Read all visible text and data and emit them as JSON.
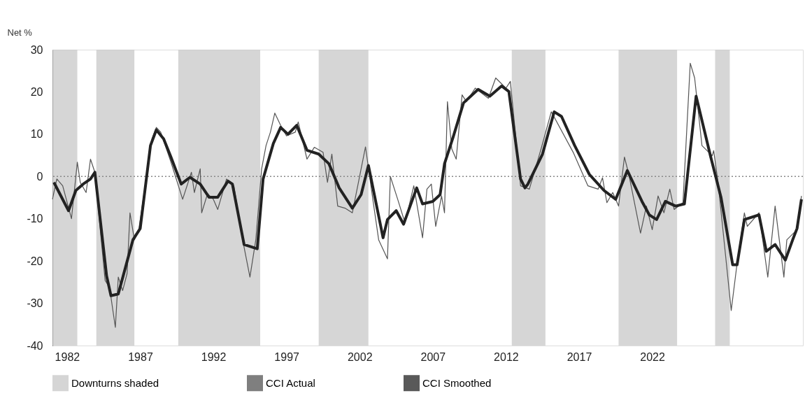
{
  "chart_data": {
    "type": "line",
    "ylabel": "Net %",
    "xlim": [
      1981.0,
      2032.3
    ],
    "xticks": [
      1982,
      1987,
      1992,
      1997,
      2002,
      2007,
      2012,
      2017,
      2022
    ],
    "ylim": [
      -40,
      30
    ],
    "yticks": [
      -40,
      -30,
      -20,
      -10,
      0,
      10,
      20,
      30
    ],
    "grid": false,
    "legend": "bottom",
    "marker": "none",
    "line_style": "solid",
    "bands": [
      {
        "axis": "x",
        "from": 1981.0,
        "to": 1982.7,
        "label": "Downturns shaded",
        "color": "#c8c8c8"
      },
      {
        "axis": "x",
        "from": 1984.0,
        "to": 1986.6,
        "color": "#c8c8c8"
      },
      {
        "axis": "x",
        "from": 1989.6,
        "to": 1995.2,
        "color": "#c8c8c8"
      },
      {
        "axis": "x",
        "from": 1999.2,
        "to": 2002.6,
        "color": "#c8c8c8"
      },
      {
        "axis": "x",
        "from": 2012.4,
        "to": 2014.7,
        "color": "#c8c8c8"
      },
      {
        "axis": "x",
        "from": 2019.7,
        "to": 2023.7,
        "color": "#c8c8c8"
      },
      {
        "axis": "x",
        "from": 2026.3,
        "to": 2027.3,
        "color": "#c8c8c8"
      }
    ],
    "ref_lines": [
      {
        "axis": "y",
        "value": 0,
        "color": "#888888",
        "line_style": "dotted"
      }
    ],
    "series": [
      {
        "name": "CCI Actual",
        "color": "#555555",
        "x": [
          1981.0,
          1981.3,
          1981.7,
          1982.3,
          1982.7,
          1982.9,
          1983.3,
          1983.6,
          1983.9,
          1984.6,
          1984.9,
          1985.3,
          1985.5,
          1985.8,
          1986.1,
          1986.3,
          1986.6,
          1986.9,
          1987.8,
          1988.1,
          1988.4,
          1989.1,
          1989.9,
          1990.5,
          1990.7,
          1991.1,
          1991.2,
          1991.6,
          1992.0,
          1992.3,
          1992.9,
          1993.4,
          1994.0,
          1994.5,
          1994.9,
          1995.3,
          1995.6,
          1995.9,
          1996.2,
          1996.6,
          1997.0,
          1997.6,
          1997.8,
          1998.4,
          1998.9,
          1999.5,
          1999.8,
          2000.1,
          2000.5,
          2001.0,
          2001.5,
          2002.4,
          2002.9,
          2003.3,
          2003.9,
          2004.1,
          2004.6,
          2005.1,
          2005.7,
          2006.3,
          2006.6,
          2006.9,
          2007.2,
          2007.6,
          2007.8,
          2008.0,
          2008.3,
          2008.6,
          2009.0,
          2009.3,
          2009.9,
          2010.8,
          2011.3,
          2012.0,
          2012.3,
          2013.0,
          2013.6,
          2014.4,
          2015.1,
          2016.6,
          2017.6,
          2018.3,
          2018.6,
          2018.9,
          2019.3,
          2019.7,
          2020.1,
          2020.4,
          2021.2,
          2021.6,
          2022.0,
          2022.4,
          2022.8,
          2023.2,
          2023.5,
          2024.1,
          2024.6,
          2024.9,
          2025.4,
          2026.1,
          2026.2,
          2026.5,
          2027.4,
          2027.8,
          2028.3,
          2028.5,
          2029.3,
          2029.9,
          2030.4,
          2031.0,
          2031.2,
          2031.9,
          2032.2
        ],
        "values": [
          -5.4,
          -0.6,
          -2.2,
          -10,
          3.4,
          -1.4,
          -3.8,
          4.1,
          1,
          -24.6,
          -26.2,
          -35.7,
          -23.8,
          -27,
          -23,
          -8.6,
          -15,
          -12.6,
          8.9,
          11.6,
          10.5,
          3.4,
          -5.4,
          1,
          -3.8,
          1.8,
          -8.6,
          -4.1,
          -5.4,
          -7.8,
          -0.6,
          -2.2,
          -15,
          -23.8,
          -15,
          1.8,
          7.3,
          10.5,
          15,
          12.1,
          9.6,
          10.5,
          12.9,
          4.1,
          6.9,
          5.7,
          -1.4,
          5.3,
          -7,
          -7.5,
          -8.6,
          7,
          -5.4,
          -15,
          -19.5,
          0,
          -5.4,
          -11,
          -2.2,
          -14.5,
          -3,
          -1.8,
          -11.8,
          -4.6,
          -8.6,
          17.7,
          6.5,
          4.1,
          19.3,
          17.7,
          20.9,
          18.5,
          23.3,
          20.9,
          22.5,
          -2.2,
          -3,
          6.5,
          15.3,
          5.7,
          -2.2,
          -3,
          -0.3,
          -6.2,
          -3.8,
          -7,
          4.6,
          0.5,
          -13.4,
          -7,
          -12.6,
          -4.6,
          -8.6,
          -3,
          -7.8,
          -6.2,
          26.8,
          23.3,
          7.3,
          4.9,
          6.1,
          -1.4,
          -31.7,
          -20.6,
          -8.6,
          -11.8,
          -8.6,
          -23.8,
          -7,
          -23.8,
          -15,
          -12.6,
          -4.6
        ]
      },
      {
        "name": "CCI Smoothed",
        "color": "#222222",
        "x": [
          1981.1,
          1982.1,
          1982.6,
          1983.1,
          1983.6,
          1983.9,
          1984.7,
          1985.0,
          1985.5,
          1986.0,
          1986.5,
          1987.0,
          1987.7,
          1988.1,
          1988.6,
          1989.1,
          1989.8,
          1990.4,
          1991.1,
          1991.7,
          1992.3,
          1993.0,
          1993.3,
          1994.1,
          1995.0,
          1995.4,
          1996.1,
          1996.6,
          1997.1,
          1997.7,
          1998.4,
          1999.2,
          1999.9,
          2000.6,
          2001.5,
          2002.1,
          2002.6,
          2003.6,
          2003.9,
          2004.5,
          2005.0,
          2005.9,
          2006.3,
          2007.0,
          2007.5,
          2007.8,
          2008.4,
          2009.1,
          2010.1,
          2010.9,
          2011.7,
          2012.2,
          2013.0,
          2013.3,
          2013.5,
          2014.5,
          2015.3,
          2015.8,
          2016.7,
          2017.7,
          2018.7,
          2019.5,
          2020.3,
          2021.3,
          2021.8,
          2022.3,
          2022.9,
          2023.6,
          2024.2,
          2025.0,
          2026.0,
          2026.7,
          2027.5,
          2027.8,
          2028.3,
          2029.3,
          2029.8,
          2030.4,
          2031.1,
          2031.6,
          2031.9,
          2032.2
        ],
        "values": [
          -1.4,
          -8.1,
          -3.3,
          -1.8,
          -0.6,
          1,
          -23.5,
          -28.2,
          -27.8,
          -21.4,
          -15,
          -12.3,
          7.3,
          11,
          8.9,
          4.6,
          -1.8,
          -0.2,
          -1.8,
          -4.9,
          -4.9,
          -1.1,
          -1.8,
          -16.1,
          -17.1,
          -0.6,
          7.8,
          11.6,
          10,
          12.1,
          6.2,
          5.3,
          3,
          -2.7,
          -7.5,
          -4.3,
          2.6,
          -14.5,
          -10.2,
          -8.1,
          -11.3,
          -2.7,
          -6.5,
          -5.9,
          -4.3,
          3,
          9.4,
          17.4,
          20.6,
          19,
          21.4,
          20.1,
          -0.6,
          -2.7,
          -1.8,
          5.3,
          15.3,
          14.2,
          7.3,
          0.5,
          -3.3,
          -5.4,
          1.4,
          -5.9,
          -9.1,
          -10.2,
          -5.9,
          -7,
          -6.5,
          19,
          4.6,
          -4.9,
          -20.9,
          -20.9,
          -10.2,
          -9.1,
          -17.7,
          -16.1,
          -19.8,
          -15,
          -12.3,
          -5.4
        ]
      }
    ]
  }
}
